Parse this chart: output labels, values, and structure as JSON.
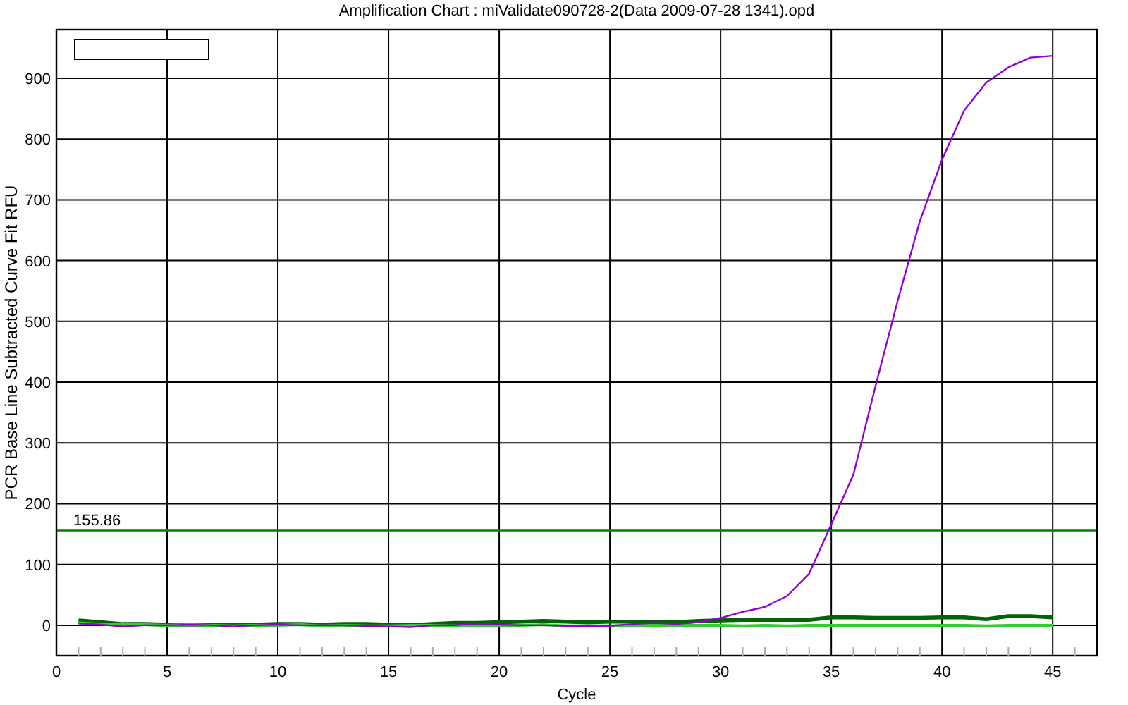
{
  "chart_data": {
    "type": "line",
    "title": "Amplification Chart : miValidate090728-2(Data 2009-07-28 1341).opd",
    "xlabel": "Cycle",
    "ylabel": "PCR Base Line Subtracted Curve Fit RFU",
    "x": [
      1,
      2,
      3,
      4,
      5,
      6,
      7,
      8,
      9,
      10,
      11,
      12,
      13,
      14,
      15,
      16,
      17,
      18,
      19,
      20,
      21,
      22,
      23,
      24,
      25,
      26,
      27,
      28,
      29,
      30,
      31,
      32,
      33,
      34,
      35,
      36,
      37,
      38,
      39,
      40,
      41,
      42,
      43,
      44,
      45
    ],
    "series": [
      {
        "color": "#006400",
        "values": [
          8,
          5,
          2,
          2,
          1,
          1,
          1,
          0,
          1,
          2,
          2,
          1,
          2,
          2,
          1,
          0,
          2,
          4,
          4,
          5,
          6,
          7,
          6,
          5,
          6,
          6,
          6,
          5,
          7,
          8,
          9,
          9,
          9,
          9,
          13,
          13,
          12,
          12,
          12,
          13,
          13,
          10,
          15,
          15,
          13
        ]
      },
      {
        "color": "#33cc33",
        "values": [
          4,
          2,
          1,
          1,
          0,
          1,
          0,
          -1,
          0,
          0,
          1,
          -1,
          0,
          -1,
          -1,
          0,
          0,
          -1,
          -1,
          0,
          0,
          1,
          -1,
          -1,
          -1,
          0,
          0,
          0,
          0,
          0,
          -1,
          0,
          -1,
          0,
          0,
          0,
          0,
          0,
          0,
          0,
          0,
          -1,
          0,
          0,
          0
        ]
      },
      {
        "color": "#9400d3",
        "values": [
          3,
          1,
          -2,
          0,
          0,
          1,
          0,
          -2,
          0,
          1,
          0,
          0,
          0,
          -1,
          -2,
          -3,
          0,
          0,
          3,
          1,
          0,
          0,
          -1,
          -1,
          -1,
          2,
          4,
          2,
          5,
          12,
          22,
          30,
          48,
          85,
          166,
          248,
          394,
          534,
          665,
          766,
          847,
          893,
          918,
          934,
          937
        ]
      }
    ],
    "xlim": [
      0,
      47
    ],
    "xticks": [
      0,
      {
        "value": 1,
        "label": null
      },
      {
        "value": 2,
        "label": null
      },
      {
        "value": 3,
        "label": null
      },
      {
        "value": 4,
        "label": null
      },
      5,
      {
        "value": 6,
        "label": null
      },
      {
        "value": 7,
        "label": null
      },
      {
        "value": 8,
        "label": null
      },
      {
        "value": 9,
        "label": null
      },
      10,
      {
        "value": 11,
        "label": null
      },
      {
        "value": 12,
        "label": null
      },
      {
        "value": 13,
        "label": null
      },
      {
        "value": 14,
        "label": null
      },
      15,
      {
        "value": 16,
        "label": null
      },
      {
        "value": 17,
        "label": null
      },
      {
        "value": 18,
        "label": null
      },
      {
        "value": 19,
        "label": null
      },
      20,
      {
        "value": 21,
        "label": null
      },
      {
        "value": 22,
        "label": null
      },
      {
        "value": 23,
        "label": null
      },
      {
        "value": 24,
        "label": null
      },
      25,
      {
        "value": 26,
        "label": null
      },
      {
        "value": 27,
        "label": null
      },
      {
        "value": 28,
        "label": null
      },
      {
        "value": 29,
        "label": null
      },
      30,
      {
        "value": 31,
        "label": null
      },
      {
        "value": 32,
        "label": null
      },
      {
        "value": 33,
        "label": null
      },
      {
        "value": 34,
        "label": null
      },
      35,
      {
        "value": 36,
        "label": null
      },
      {
        "value": 37,
        "label": null
      },
      {
        "value": 38,
        "label": null
      },
      {
        "value": 39,
        "label": null
      },
      40,
      {
        "value": 41,
        "label": null
      },
      {
        "value": 42,
        "label": null
      },
      {
        "value": 43,
        "label": null
      },
      {
        "value": 44,
        "label": null
      },
      45,
      {
        "value": 46,
        "label": null
      }
    ],
    "ylim": [
      -50,
      980
    ],
    "yticks": [
      0,
      100,
      200,
      300,
      400,
      500,
      600,
      700,
      800,
      900
    ],
    "grid": true,
    "marker": "none",
    "line_style": "solid",
    "ref_lines": [
      {
        "axis": "y",
        "value": 155.86,
        "label": "155.86",
        "color": "#008000"
      }
    ]
  }
}
